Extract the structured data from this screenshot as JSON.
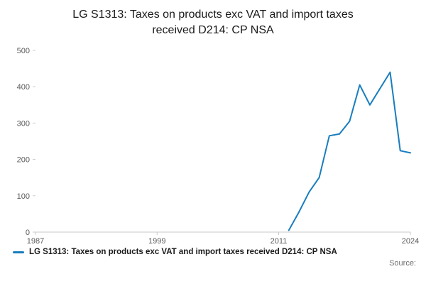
{
  "title": "LG S1313: Taxes on products exc VAT and import taxes received D214: CP NSA",
  "legend": {
    "label": "LG S1313: Taxes on products exc VAT and import taxes received D214: CP NSA"
  },
  "footer": {
    "source": "Source:"
  },
  "chart_data": {
    "type": "line",
    "title": "LG S1313: Taxes on products exc VAT and import taxes received D214: CP NSA",
    "xlabel": "",
    "ylabel": "",
    "xlim": [
      1987,
      2024
    ],
    "ylim": [
      0,
      500
    ],
    "x_ticks": [
      1987,
      1999,
      2011,
      2024
    ],
    "y_ticks": [
      0,
      100,
      200,
      300,
      400,
      500
    ],
    "grid": false,
    "legend_position": "bottom-left",
    "color": "#187dbe",
    "series": [
      {
        "name": "LG S1313: Taxes on products exc VAT and import taxes received D214: CP NSA",
        "x": [
          2012,
          2013,
          2014,
          2015,
          2016,
          2017,
          2018,
          2019,
          2020,
          2021,
          2022,
          2023,
          2024
        ],
        "values": [
          5,
          55,
          110,
          150,
          265,
          270,
          305,
          405,
          350,
          395,
          440,
          224,
          218
        ]
      }
    ]
  }
}
